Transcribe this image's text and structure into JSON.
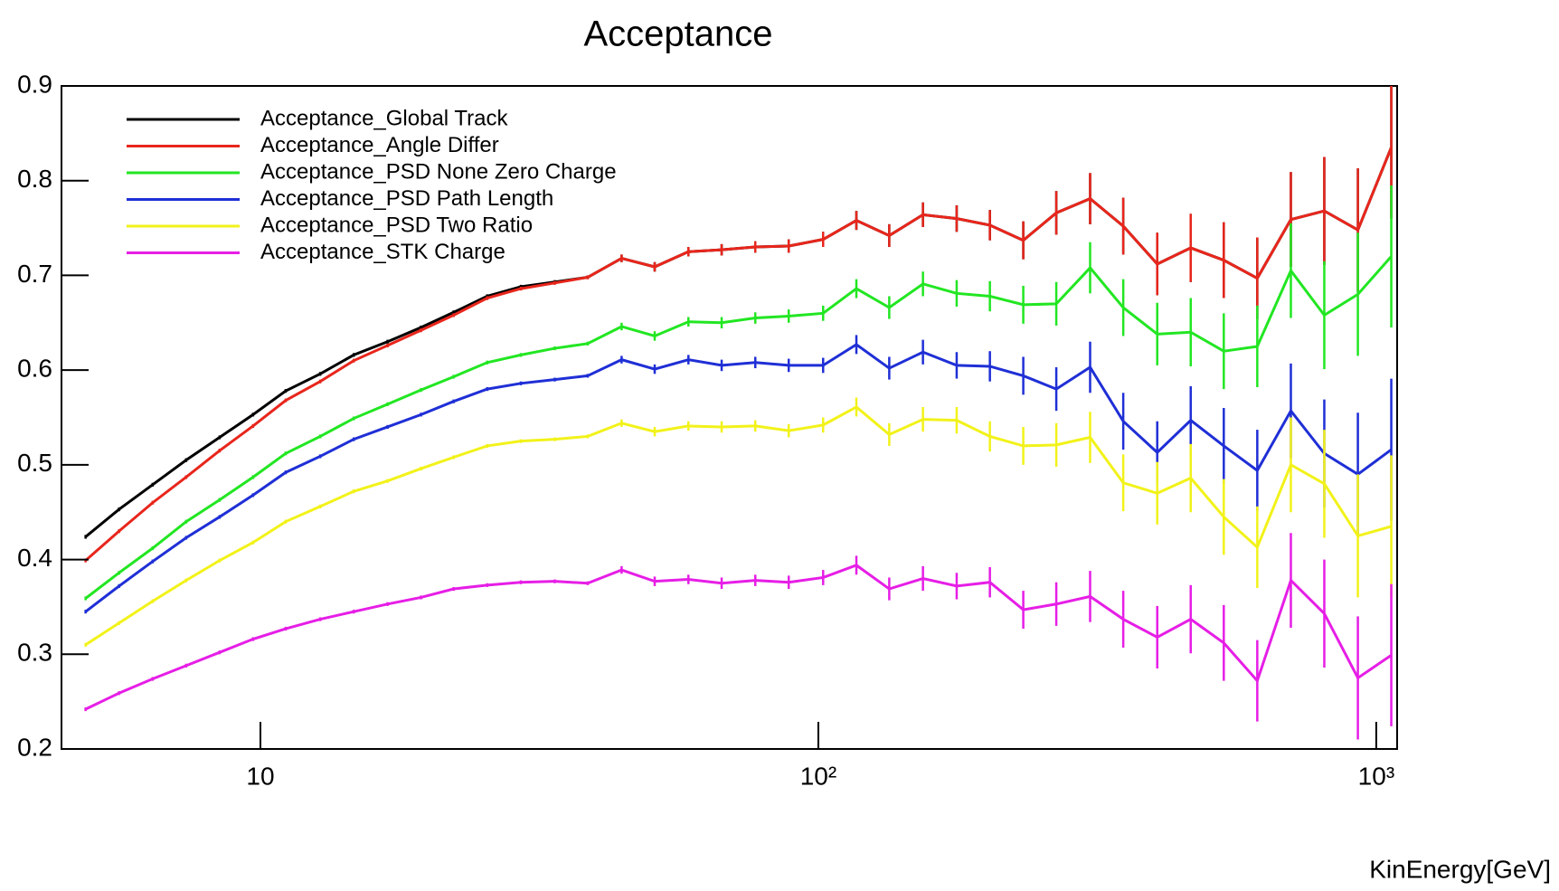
{
  "chart_data": {
    "type": "line",
    "title": "Acceptance",
    "x_label": "KinEnergy[GeV]",
    "log_x": true,
    "x": [
      4.86,
      5.58,
      6.41,
      7.36,
      8.45,
      9.7,
      11.1,
      12.8,
      14.7,
      16.9,
      19.4,
      22.2,
      25.5,
      29.3,
      33.7,
      38.6,
      44.4,
      50.9,
      58.5,
      67.1,
      77.1,
      88.5,
      102,
      117,
      134,
      154,
      177,
      203,
      233,
      267,
      307,
      352,
      405,
      465,
      533,
      612,
      703,
      807,
      927,
      1064
    ],
    "xlim": [
      4.4,
      1090
    ],
    "xticks": [
      10,
      {
        "value": 100,
        "label": "10²"
      },
      {
        "value": 1000,
        "label": "10³"
      }
    ],
    "ylim": [
      0.2,
      0.9
    ],
    "yticks": [
      0.2,
      0.3,
      0.4,
      0.5,
      0.6,
      0.7,
      0.8,
      0.9
    ],
    "series": [
      {
        "name": "Acceptance_Global Track",
        "color": "#000000",
        "values": [
          0.424,
          0.453,
          0.479,
          0.505,
          0.529,
          0.553,
          0.578,
          0.596,
          0.616,
          0.63,
          0.645,
          0.661,
          0.678,
          0.688,
          0.693,
          0.698,
          0.718,
          0.709,
          0.725,
          0.727,
          0.73,
          0.731,
          0.738,
          0.758,
          0.742,
          0.764,
          0.76,
          0.753,
          0.737,
          0.766,
          0.781,
          0.752,
          0.712,
          0.729,
          0.716,
          0.697,
          0.759,
          0.768,
          0.748,
          0.835
        ],
        "errors": [
          0.002,
          0.002,
          0.002,
          0.002,
          0.002,
          0.002,
          0.002,
          0.002,
          0.002,
          0.002,
          0.002,
          0.002,
          0.002,
          0.002,
          0.002,
          0.002,
          0.004,
          0.005,
          0.005,
          0.006,
          0.006,
          0.007,
          0.008,
          0.01,
          0.012,
          0.013,
          0.014,
          0.016,
          0.02,
          0.023,
          0.027,
          0.03,
          0.033,
          0.036,
          0.04,
          0.043,
          0.05,
          0.057,
          0.065,
          0.075
        ]
      },
      {
        "name": "Acceptance_Angle Differ",
        "color": "#e8261c",
        "values": [
          0.399,
          0.43,
          0.46,
          0.487,
          0.515,
          0.541,
          0.568,
          0.588,
          0.61,
          0.626,
          0.642,
          0.658,
          0.676,
          0.686,
          0.692,
          0.698,
          0.718,
          0.709,
          0.725,
          0.727,
          0.73,
          0.731,
          0.738,
          0.758,
          0.742,
          0.764,
          0.76,
          0.753,
          0.737,
          0.766,
          0.781,
          0.752,
          0.712,
          0.729,
          0.716,
          0.697,
          0.759,
          0.768,
          0.748,
          0.835
        ],
        "errors": [
          0.002,
          0.002,
          0.002,
          0.002,
          0.002,
          0.002,
          0.002,
          0.002,
          0.002,
          0.002,
          0.002,
          0.002,
          0.002,
          0.002,
          0.002,
          0.002,
          0.004,
          0.005,
          0.005,
          0.006,
          0.006,
          0.007,
          0.008,
          0.01,
          0.012,
          0.013,
          0.014,
          0.016,
          0.02,
          0.023,
          0.027,
          0.03,
          0.033,
          0.036,
          0.04,
          0.043,
          0.05,
          0.057,
          0.065,
          0.075
        ]
      },
      {
        "name": "Acceptance_PSD None Zero Charge",
        "color": "#22e622",
        "values": [
          0.359,
          0.386,
          0.412,
          0.44,
          0.463,
          0.487,
          0.512,
          0.53,
          0.549,
          0.564,
          0.579,
          0.593,
          0.608,
          0.616,
          0.623,
          0.628,
          0.646,
          0.636,
          0.651,
          0.65,
          0.655,
          0.657,
          0.66,
          0.686,
          0.666,
          0.691,
          0.681,
          0.678,
          0.669,
          0.67,
          0.708,
          0.666,
          0.638,
          0.64,
          0.62,
          0.625,
          0.705,
          0.658,
          0.68,
          0.72
        ],
        "errors": [
          0.002,
          0.002,
          0.002,
          0.002,
          0.002,
          0.002,
          0.002,
          0.002,
          0.002,
          0.002,
          0.002,
          0.002,
          0.002,
          0.002,
          0.002,
          0.002,
          0.004,
          0.005,
          0.005,
          0.006,
          0.006,
          0.007,
          0.008,
          0.01,
          0.012,
          0.013,
          0.014,
          0.016,
          0.02,
          0.023,
          0.027,
          0.03,
          0.033,
          0.036,
          0.04,
          0.043,
          0.05,
          0.057,
          0.065,
          0.075
        ]
      },
      {
        "name": "Acceptance_PSD Path Length",
        "color": "#1f2fd6",
        "values": [
          0.345,
          0.372,
          0.398,
          0.423,
          0.445,
          0.468,
          0.492,
          0.509,
          0.527,
          0.54,
          0.553,
          0.567,
          0.58,
          0.586,
          0.59,
          0.594,
          0.611,
          0.601,
          0.611,
          0.605,
          0.608,
          0.605,
          0.605,
          0.627,
          0.602,
          0.619,
          0.605,
          0.604,
          0.594,
          0.58,
          0.603,
          0.546,
          0.513,
          0.547,
          0.52,
          0.494,
          0.557,
          0.512,
          0.49,
          0.516
        ],
        "errors": [
          0.002,
          0.002,
          0.002,
          0.002,
          0.002,
          0.002,
          0.002,
          0.002,
          0.002,
          0.002,
          0.002,
          0.002,
          0.002,
          0.002,
          0.002,
          0.002,
          0.004,
          0.005,
          0.005,
          0.006,
          0.006,
          0.007,
          0.008,
          0.01,
          0.012,
          0.013,
          0.014,
          0.016,
          0.02,
          0.023,
          0.027,
          0.03,
          0.033,
          0.036,
          0.04,
          0.043,
          0.05,
          0.057,
          0.065,
          0.075
        ]
      },
      {
        "name": "Acceptance_PSD Two Ratio",
        "color": "#f2f21a",
        "values": [
          0.31,
          0.333,
          0.356,
          0.378,
          0.399,
          0.418,
          0.44,
          0.456,
          0.472,
          0.483,
          0.496,
          0.508,
          0.52,
          0.525,
          0.527,
          0.53,
          0.544,
          0.535,
          0.541,
          0.54,
          0.541,
          0.536,
          0.542,
          0.561,
          0.532,
          0.548,
          0.547,
          0.53,
          0.52,
          0.521,
          0.529,
          0.481,
          0.47,
          0.486,
          0.445,
          0.413,
          0.5,
          0.48,
          0.425,
          0.435
        ],
        "errors": [
          0.002,
          0.002,
          0.002,
          0.002,
          0.002,
          0.002,
          0.002,
          0.002,
          0.002,
          0.002,
          0.002,
          0.002,
          0.002,
          0.002,
          0.002,
          0.002,
          0.004,
          0.005,
          0.005,
          0.006,
          0.006,
          0.007,
          0.008,
          0.01,
          0.012,
          0.013,
          0.014,
          0.016,
          0.02,
          0.023,
          0.027,
          0.03,
          0.033,
          0.036,
          0.04,
          0.043,
          0.05,
          0.057,
          0.065,
          0.075
        ]
      },
      {
        "name": "Acceptance_STK Charge",
        "color": "#e61ee6",
        "values": [
          0.242,
          0.259,
          0.274,
          0.288,
          0.302,
          0.316,
          0.327,
          0.337,
          0.345,
          0.353,
          0.36,
          0.369,
          0.373,
          0.376,
          0.377,
          0.375,
          0.389,
          0.377,
          0.379,
          0.375,
          0.378,
          0.376,
          0.381,
          0.394,
          0.369,
          0.38,
          0.372,
          0.376,
          0.347,
          0.353,
          0.361,
          0.337,
          0.318,
          0.337,
          0.312,
          0.272,
          0.378,
          0.343,
          0.275,
          0.299
        ],
        "errors": [
          0.002,
          0.002,
          0.002,
          0.002,
          0.002,
          0.002,
          0.002,
          0.002,
          0.002,
          0.002,
          0.002,
          0.002,
          0.002,
          0.002,
          0.002,
          0.002,
          0.004,
          0.005,
          0.005,
          0.006,
          0.006,
          0.007,
          0.008,
          0.01,
          0.012,
          0.013,
          0.014,
          0.016,
          0.02,
          0.023,
          0.027,
          0.03,
          0.033,
          0.036,
          0.04,
          0.043,
          0.05,
          0.057,
          0.065,
          0.075
        ]
      }
    ],
    "legend": "upper left"
  }
}
